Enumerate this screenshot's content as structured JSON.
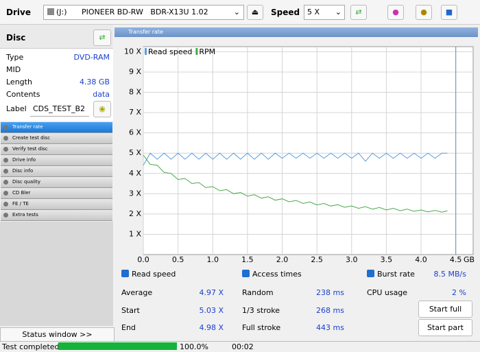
{
  "toolbar": {
    "drive_label": "Drive",
    "drive_letter": "(J:)",
    "drive_name": "PIONEER BD-RW   BDR-X13U 1.02",
    "speed_label": "Speed",
    "speed_value": "5 X"
  },
  "disc": {
    "title": "Disc",
    "rows": [
      {
        "label": "Type",
        "value": "DVD-RAM"
      },
      {
        "label": "MID",
        "value": ""
      },
      {
        "label": "Length",
        "value": "4.38 GB"
      },
      {
        "label": "Contents",
        "value": "data"
      }
    ],
    "label_field": {
      "label": "Label",
      "value": "CDS_TEST_B2"
    }
  },
  "nav": [
    "Transfer rate",
    "Create test disc",
    "Verify test disc",
    "Drive info",
    "Disc info",
    "Disc quality",
    "CD Bler",
    "FE / TE",
    "Extra tests"
  ],
  "status_window": "Status window >>",
  "panel_title": "Transfer rate",
  "chart_data": {
    "type": "line",
    "xlim": [
      0,
      4.75
    ],
    "ylim": [
      0,
      10.25
    ],
    "xticks": [
      {
        "value": 0,
        "label": "0.0"
      },
      0.5,
      {
        "value": 1,
        "label": "1.0"
      },
      1.5,
      {
        "value": 2,
        "label": "2.0"
      },
      2.5,
      {
        "value": 3,
        "label": "3.0"
      },
      3.5,
      {
        "value": 4,
        "label": "4.0"
      },
      4.5
    ],
    "x_unit": "GB",
    "yticks": [
      {
        "value": 1,
        "label": "1 X"
      },
      {
        "value": 2,
        "label": "2 X"
      },
      {
        "value": 3,
        "label": "3 X"
      },
      {
        "value": 4,
        "label": "4 X"
      },
      {
        "value": 5,
        "label": "5 X"
      },
      {
        "value": 6,
        "label": "6 X"
      },
      {
        "value": 7,
        "label": "7 X"
      },
      {
        "value": 8,
        "label": "8 X"
      },
      {
        "value": 9,
        "label": "9 X"
      },
      {
        "value": 10,
        "label": "10 X"
      }
    ],
    "grid": true,
    "end_marker": 4.5,
    "end_marker_color": "#4a90e2",
    "x": [
      0,
      0.1,
      0.2,
      0.3,
      0.4,
      0.5,
      0.6,
      0.7,
      0.8,
      0.9,
      1,
      1.1,
      1.2,
      1.3,
      1.4,
      1.5,
      1.6,
      1.7,
      1.8,
      1.9,
      2,
      2.1,
      2.2,
      2.3,
      2.4,
      2.5,
      2.6,
      2.7,
      2.8,
      2.9,
      3,
      3.1,
      3.2,
      3.3,
      3.4,
      3.5,
      3.6,
      3.7,
      3.8,
      3.9,
      4,
      4.1,
      4.2,
      4.3,
      4.38
    ],
    "series": [
      {
        "name": "Read speed",
        "color": "#5a9de0",
        "values": [
          4.4,
          5,
          4.7,
          5,
          4.7,
          5,
          4.7,
          5,
          4.7,
          5,
          4.7,
          5,
          4.7,
          5,
          4.7,
          5,
          4.7,
          5,
          4.7,
          5,
          4.75,
          5,
          4.75,
          5,
          4.75,
          5,
          4.75,
          5,
          4.75,
          5,
          4.75,
          5,
          4.6,
          5,
          4.75,
          5,
          4.75,
          5,
          4.75,
          5,
          4.75,
          5,
          4.75,
          5,
          5
        ]
      },
      {
        "name": "RPM",
        "color": "#4aa84a",
        "values": [
          4.9,
          4.45,
          4.4,
          4.05,
          4.0,
          3.7,
          3.75,
          3.5,
          3.55,
          3.3,
          3.35,
          3.15,
          3.2,
          3.0,
          3.06,
          2.88,
          2.95,
          2.78,
          2.85,
          2.68,
          2.75,
          2.6,
          2.67,
          2.52,
          2.59,
          2.45,
          2.52,
          2.39,
          2.46,
          2.33,
          2.4,
          2.28,
          2.36,
          2.24,
          2.32,
          2.2,
          2.28,
          2.16,
          2.24,
          2.13,
          2.2,
          2.1,
          2.18,
          2.09,
          2.16
        ]
      }
    ]
  },
  "stats": {
    "read_speed": {
      "label": "Read speed",
      "rows": [
        {
          "label": "Average",
          "value": "4.97 X"
        },
        {
          "label": "Start",
          "value": "5.03 X"
        },
        {
          "label": "End",
          "value": "4.98 X"
        }
      ]
    },
    "access_times": {
      "label": "Access times",
      "rows": [
        {
          "label": "Random",
          "value": "238 ms"
        },
        {
          "label": "1/3 stroke",
          "value": "268 ms"
        },
        {
          "label": "Full stroke",
          "value": "443 ms"
        }
      ]
    },
    "burst_rate": {
      "label": "Burst rate",
      "value": "8.5 MB/s"
    },
    "cpu_usage": {
      "label": "CPU usage",
      "value": "2 %"
    }
  },
  "buttons": [
    "Start full",
    "Start part"
  ],
  "statusbar": {
    "text": "Test completed",
    "progress": {
      "value": 100,
      "label": "100.0%"
    },
    "time": "00:02"
  }
}
